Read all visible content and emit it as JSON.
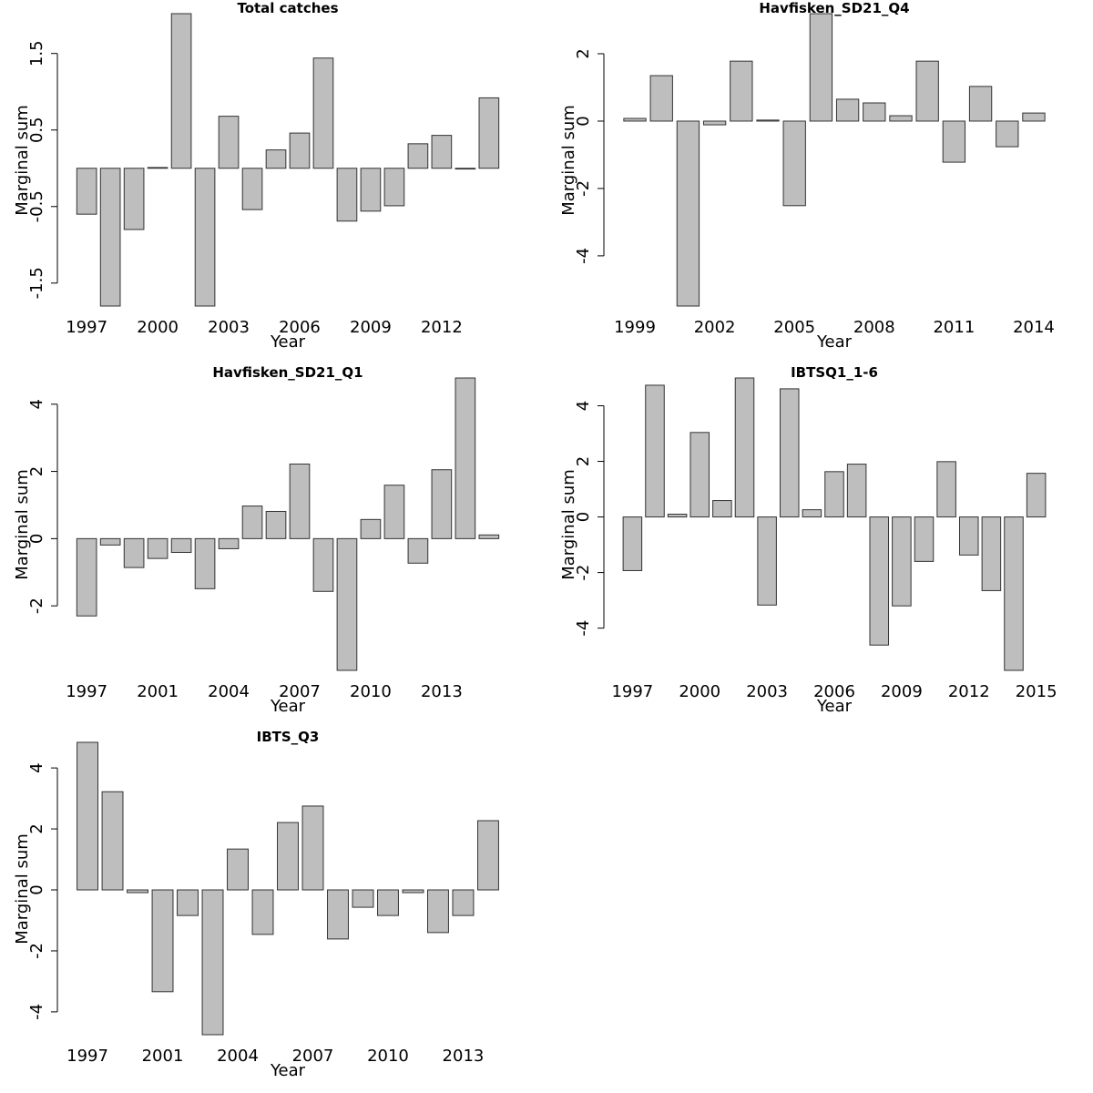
{
  "chart_data": [
    {
      "type": "bar",
      "title": "Total catches",
      "xlabel": "Year",
      "ylabel": "Marginal sum",
      "color": "#bebebe",
      "categories": [
        "1997",
        null,
        null,
        "2000",
        null,
        null,
        "2003",
        null,
        null,
        "2006",
        null,
        null,
        "2009",
        null,
        null,
        "2012",
        null,
        null
      ],
      "values": [
        -0.6,
        -1.8,
        -0.8,
        0.01,
        2.02,
        -1.8,
        0.68,
        -0.54,
        0.24,
        0.46,
        1.44,
        -0.69,
        -0.56,
        -0.49,
        0.32,
        0.43,
        -0.01,
        0.92
      ],
      "ylim": [
        -1.8,
        2.02
      ],
      "yticks": [
        -1.5,
        -0.5,
        0.5,
        1.5
      ]
    },
    {
      "type": "bar",
      "title": "Havfisken_SD21_Q4",
      "xlabel": "Year",
      "ylabel": "Marginal sum",
      "color": "#bebebe",
      "categories": [
        "1999",
        null,
        null,
        "2002",
        null,
        null,
        "2005",
        null,
        null,
        "2008",
        null,
        null,
        "2011",
        null,
        null,
        "2014"
      ],
      "values": [
        0.08,
        1.35,
        -5.49,
        -0.11,
        1.78,
        0.03,
        -2.51,
        3.19,
        0.65,
        0.54,
        0.16,
        1.78,
        -1.22,
        1.03,
        -0.76,
        0.24
      ],
      "ylim": [
        -5.49,
        3.19
      ],
      "yticks": [
        -4,
        -2,
        0,
        2
      ]
    },
    {
      "type": "bar",
      "title": "Havfisken_SD21_Q1",
      "xlabel": "Year",
      "ylabel": "Marginal sum",
      "color": "#bebebe",
      "categories": [
        "1997",
        null,
        null,
        "2001",
        null,
        null,
        "2004",
        null,
        null,
        "2007",
        null,
        null,
        "2010",
        null,
        null,
        "2013",
        null,
        null
      ],
      "values": [
        -2.3,
        -0.19,
        -0.86,
        -0.59,
        -0.41,
        -1.49,
        -0.3,
        0.97,
        0.81,
        2.22,
        -1.57,
        -3.92,
        0.57,
        1.59,
        -0.73,
        2.05,
        4.78,
        0.11
      ],
      "ylim": [
        -3.92,
        4.78
      ],
      "yticks": [
        -2,
        0,
        2,
        4
      ]
    },
    {
      "type": "bar",
      "title": "IBTSQ1_1-6",
      "xlabel": "Year",
      "ylabel": "Marginal sum",
      "color": "#bebebe",
      "categories": [
        "1997",
        null,
        null,
        "2000",
        null,
        null,
        "2003",
        null,
        null,
        "2006",
        null,
        null,
        "2009",
        null,
        null,
        "2012",
        null,
        null,
        "2015"
      ],
      "values": [
        -1.93,
        4.74,
        0.1,
        3.04,
        0.59,
        5.0,
        -3.17,
        4.61,
        0.26,
        1.63,
        1.9,
        -4.61,
        -3.2,
        -1.6,
        1.99,
        -1.37,
        -2.65,
        -5.52,
        1.57
      ],
      "ylim": [
        -5.52,
        5.0
      ],
      "yticks": [
        -4,
        -2,
        0,
        2,
        4
      ]
    },
    {
      "type": "bar",
      "title": "IBTS_Q3",
      "xlabel": "Year",
      "ylabel": "Marginal sum",
      "color": "#bebebe",
      "categories": [
        "1997",
        null,
        null,
        "2001",
        null,
        null,
        "2004",
        null,
        null,
        "2007",
        null,
        null,
        "2010",
        null,
        null,
        "2013",
        null
      ],
      "values": [
        4.84,
        3.22,
        -0.09,
        -3.34,
        -0.84,
        -4.75,
        1.34,
        -1.46,
        2.21,
        2.75,
        -1.61,
        -0.57,
        -0.84,
        -0.09,
        -1.4,
        -0.84,
        2.27
      ],
      "ylim": [
        -4.75,
        4.84
      ],
      "yticks": [
        -4,
        -2,
        0,
        2,
        4
      ]
    }
  ]
}
